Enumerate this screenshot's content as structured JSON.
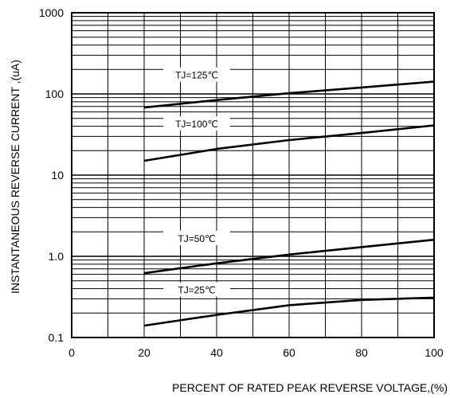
{
  "chart_data": {
    "type": "line",
    "title": "",
    "xlabel": "PERCENT OF RATED PEAK REVERSE VOLTAGE,(%)",
    "ylabel": "INSTANTANEOUS  REVERSE  CURRENT ,(uA)",
    "xlim": [
      0,
      100
    ],
    "ylim": [
      0.1,
      1000
    ],
    "y_scale": "log",
    "grid": true,
    "x_ticks": [
      "0",
      "20",
      "40",
      "60",
      "80",
      "100"
    ],
    "y_ticks": [
      "0.1",
      "1.0",
      "10",
      "100",
      "1000"
    ],
    "series": [
      {
        "name": "TJ=125℃",
        "x": [
          20,
          40,
          60,
          80,
          100
        ],
        "y": [
          68,
          84,
          102,
          120,
          142
        ]
      },
      {
        "name": "TJ=100℃",
        "x": [
          20,
          40,
          60,
          80,
          100
        ],
        "y": [
          15,
          21,
          27,
          33,
          41
        ]
      },
      {
        "name": "TJ=50℃",
        "x": [
          20,
          40,
          60,
          80,
          100
        ],
        "y": [
          0.62,
          0.82,
          1.05,
          1.3,
          1.6
        ]
      },
      {
        "name": "TJ=25℃",
        "x": [
          20,
          40,
          60,
          80,
          100
        ],
        "y": [
          0.14,
          0.19,
          0.25,
          0.29,
          0.31
        ]
      }
    ]
  }
}
